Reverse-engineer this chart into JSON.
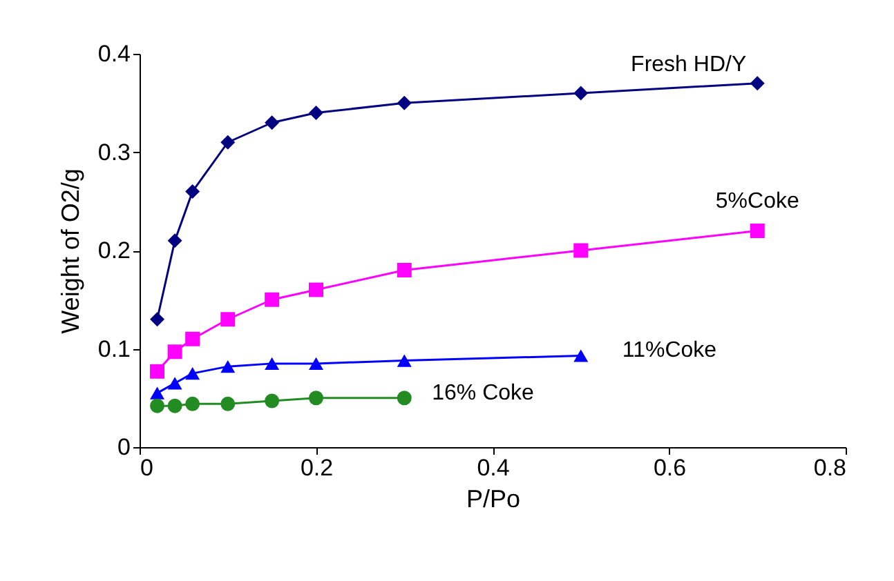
{
  "chart_data": {
    "type": "line",
    "xlabel": "P/Po",
    "ylabel": "Weight of O2/g",
    "xlim": [
      0,
      0.8
    ],
    "xticks": [
      0,
      0.2,
      0.4,
      0.6,
      0.8
    ],
    "ylim": [
      0,
      0.4
    ],
    "yticks": [
      0,
      0.1,
      0.2,
      0.3,
      0.4
    ],
    "grid": false,
    "legend": false,
    "series": [
      {
        "name": "Fresh HD/Y",
        "color": "#000080",
        "marker": "diamond",
        "x": [
          0.02,
          0.04,
          0.06,
          0.1,
          0.15,
          0.2,
          0.3,
          0.5,
          0.7
        ],
        "values": [
          0.13,
          0.21,
          0.26,
          0.31,
          0.33,
          0.34,
          0.35,
          0.36,
          0.37
        ]
      },
      {
        "name": "5%Coke",
        "color": "#ff00ff",
        "marker": "square",
        "x": [
          0.02,
          0.04,
          0.06,
          0.1,
          0.15,
          0.2,
          0.3,
          0.5,
          0.7
        ],
        "values": [
          0.077,
          0.097,
          0.11,
          0.13,
          0.15,
          0.16,
          0.18,
          0.2,
          0.22
        ]
      },
      {
        "name": "11%Coke",
        "color": "#0000ff",
        "marker": "triangle",
        "x": [
          0.02,
          0.04,
          0.06,
          0.1,
          0.15,
          0.2,
          0.3,
          0.5
        ],
        "values": [
          0.055,
          0.065,
          0.075,
          0.082,
          0.085,
          0.085,
          0.088,
          0.093
        ]
      },
      {
        "name": "16% Coke",
        "color": "#228b22",
        "marker": "circle",
        "x": [
          0.02,
          0.04,
          0.06,
          0.1,
          0.15,
          0.2,
          0.3
        ],
        "values": [
          0.042,
          0.042,
          0.044,
          0.044,
          0.047,
          0.05,
          0.05
        ]
      }
    ]
  }
}
